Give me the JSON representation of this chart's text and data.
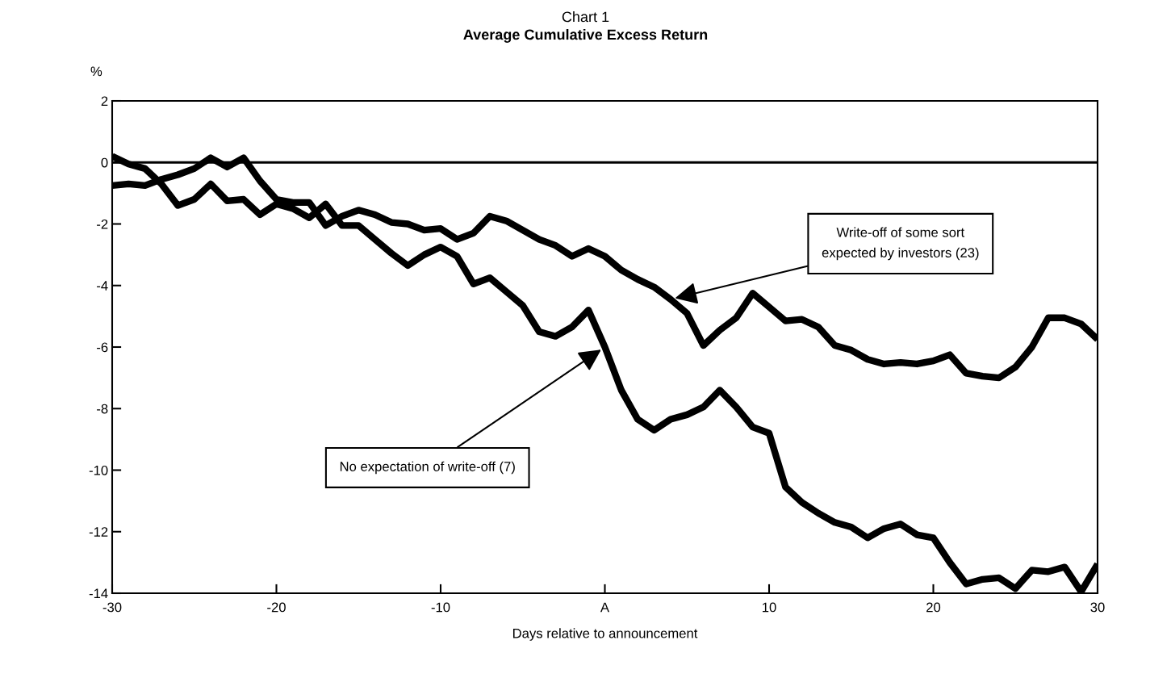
{
  "chart_data": {
    "type": "line",
    "title": "Chart 1",
    "subtitle": "Average Cumulative Excess Return",
    "xlabel": "Days relative to announcement",
    "ylabel": "%",
    "x": [
      -30,
      -29,
      -28,
      -27,
      -26,
      -25,
      -24,
      -23,
      -22,
      -21,
      -20,
      -19,
      -18,
      -17,
      -16,
      -15,
      -14,
      -13,
      -12,
      -11,
      -10,
      -9,
      -8,
      -7,
      -6,
      -5,
      -4,
      -3,
      -2,
      -1,
      0,
      1,
      2,
      3,
      4,
      5,
      6,
      7,
      8,
      9,
      10,
      11,
      12,
      13,
      14,
      15,
      16,
      17,
      18,
      19,
      20,
      21,
      22,
      23,
      24,
      25,
      26,
      27,
      28,
      29,
      30
    ],
    "series": [
      {
        "color": "#000000",
        "values": [
          -0.75,
          -0.7,
          -0.75,
          -0.55,
          -0.4,
          -0.2,
          0.15,
          -0.15,
          0.15,
          -0.6,
          -1.2,
          -1.3,
          -1.3,
          -2.05,
          -1.75,
          -1.55,
          -1.7,
          -1.95,
          -2.0,
          -2.2,
          -2.15,
          -2.5,
          -2.3,
          -1.75,
          -1.9,
          -2.2,
          -2.5,
          -2.7,
          -3.05,
          -2.8,
          -3.05,
          -3.5,
          -3.8,
          -4.05,
          -4.45,
          -4.9,
          -5.95,
          -5.45,
          -5.05,
          -4.25,
          -4.7,
          -5.15,
          -5.1,
          -5.35,
          -5.95,
          -6.1,
          -6.4,
          -6.55,
          -6.5,
          -6.55,
          -6.45,
          -6.25,
          -6.85,
          -6.95,
          -7.0,
          -6.65,
          -6.0,
          -5.05,
          -5.05,
          -5.25,
          -5.75
        ]
      },
      {
        "color": "#000000",
        "values": [
          0.2,
          -0.05,
          -0.2,
          -0.7,
          -1.4,
          -1.2,
          -0.7,
          -1.25,
          -1.2,
          -1.7,
          -1.35,
          -1.5,
          -1.8,
          -1.35,
          -2.05,
          -2.05,
          -2.5,
          -2.95,
          -3.35,
          -3.0,
          -2.75,
          -3.05,
          -3.95,
          -3.75,
          -4.2,
          -4.65,
          -5.5,
          -5.65,
          -5.35,
          -4.8,
          -6.0,
          -7.4,
          -8.35,
          -8.7,
          -8.35,
          -8.2,
          -7.95,
          -7.4,
          -7.95,
          -8.6,
          -8.8,
          -10.55,
          -11.05,
          -11.4,
          -11.7,
          -11.85,
          -12.2,
          -11.9,
          -11.75,
          -12.1,
          -12.2,
          -13.0,
          -13.7,
          -13.55,
          -13.5,
          -13.85,
          -13.25,
          -13.3,
          -13.15,
          -13.95,
          -13.05
        ]
      }
    ],
    "xlim": [
      -30,
      30
    ],
    "xticks": [
      -30,
      -20,
      -10,
      {
        "value": 0,
        "label": "A"
      },
      10,
      20,
      30
    ],
    "ylim": [
      -14,
      2
    ],
    "yticks": [
      -14,
      -12,
      -10,
      -8,
      -6,
      -4,
      -2,
      0,
      2
    ],
    "ref_lines": [
      {
        "axis": "y",
        "value": 0,
        "color": "#000000"
      }
    ],
    "annotations": [
      {
        "text": "Write-off of some sort\nexpected by investors (23)",
        "x": 4,
        "y": -4.45
      },
      {
        "text": "No expectation of write-off (7)",
        "x": 0,
        "y": -6.0
      }
    ],
    "grid": false,
    "legend": false,
    "marker": "none",
    "line_style": "solid"
  }
}
